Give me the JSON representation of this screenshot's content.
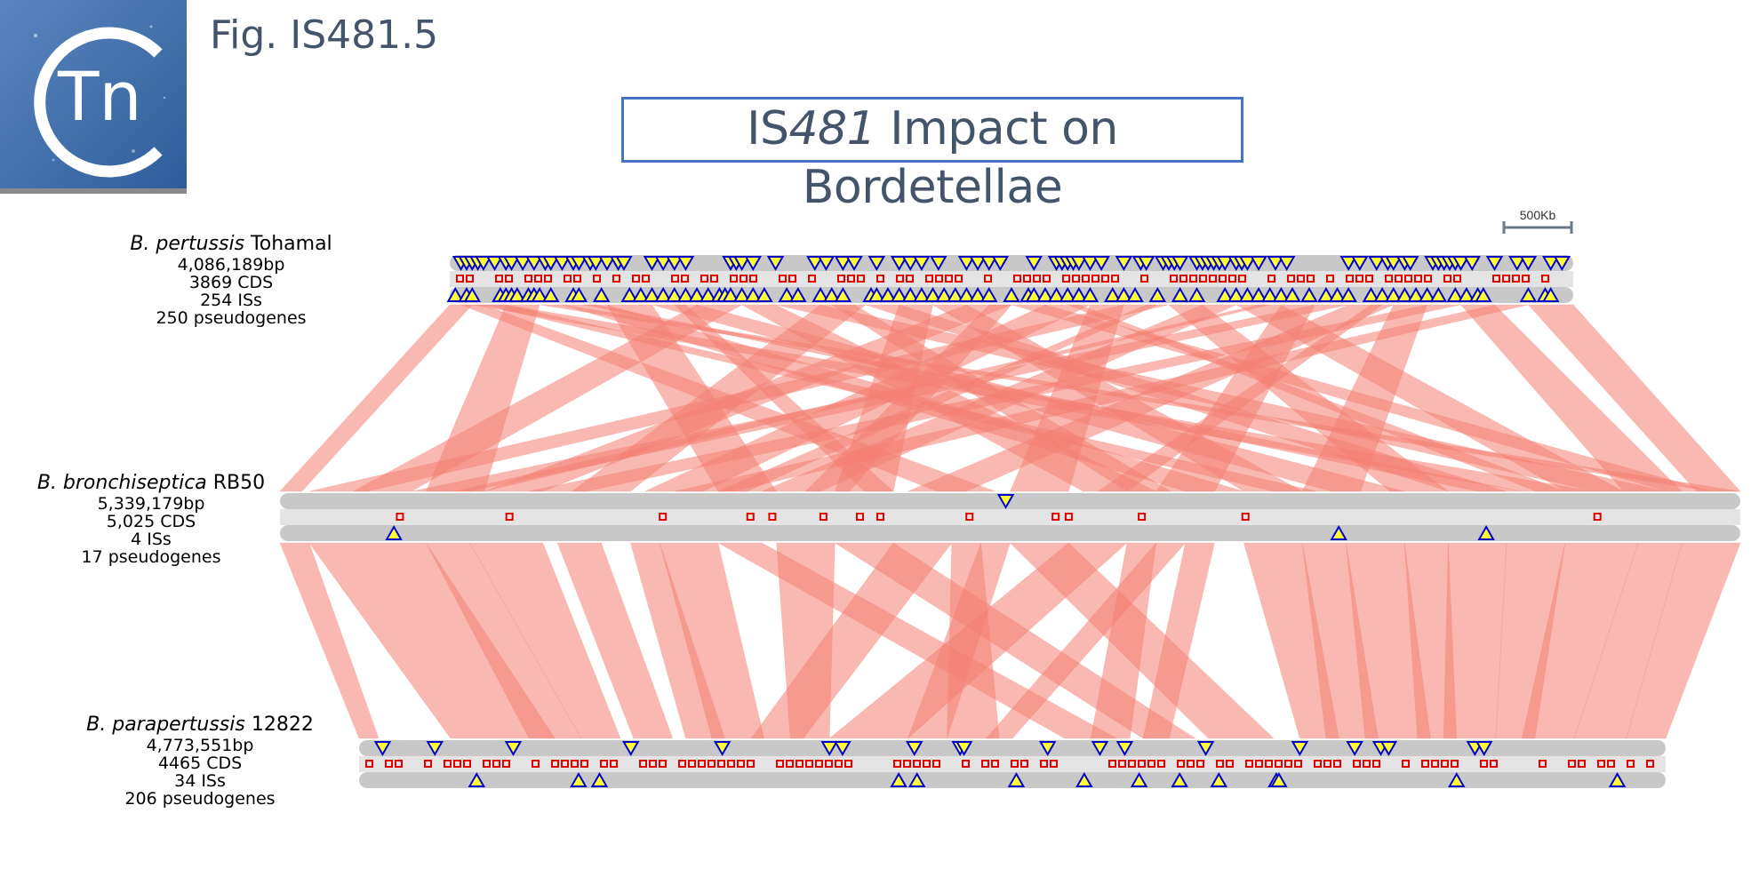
{
  "figure_label": "Fig. IS481.5",
  "title": {
    "prefix": "IS",
    "italic": "481",
    "suffix": " Impact on Bordetellae"
  },
  "logo": {
    "text": "Tn",
    "icon": "tn-logo-icon"
  },
  "scale_bar": {
    "label": "500Kb"
  },
  "genomes": [
    {
      "species": "B. pertussis",
      "strain": "Tohamal",
      "length": "4,086,189bp",
      "cds": "3869 CDS",
      "iss": "254 ISs",
      "pseudogenes": "250 pseudogenes"
    },
    {
      "species": "B. bronchiseptica",
      "strain": "RB50",
      "length": "5,339,179bp",
      "cds": "5,025 CDS",
      "iss": "4 ISs",
      "pseudogenes": "17 pseudogenes"
    },
    {
      "species": "B. parapertussis",
      "strain": "12822",
      "length": "4,773,551bp",
      "cds": "4465 CDS",
      "iss": "34 ISs",
      "pseudogenes": "206 pseudogenes"
    }
  ],
  "colors": {
    "title_text": "#44546a",
    "title_border": "#4472c4",
    "homology": "#f47f72",
    "cds": "#e00000",
    "is_fill": "#ffff33",
    "is_stroke": "#0000cc",
    "track": "#c8c8c8",
    "track_light": "#e4e4e4"
  },
  "markers": {
    "g1_fwd": [
      0.01,
      0.015,
      0.02,
      0.025,
      0.03,
      0.04,
      0.05,
      0.055,
      0.065,
      0.075,
      0.085,
      0.09,
      0.1,
      0.11,
      0.115,
      0.125,
      0.13,
      0.14,
      0.15,
      0.155,
      0.18,
      0.19,
      0.2,
      0.21,
      0.25,
      0.255,
      0.26,
      0.27,
      0.29,
      0.325,
      0.335,
      0.35,
      0.36,
      0.38,
      0.4,
      0.41,
      0.42,
      0.435,
      0.46,
      0.47,
      0.48,
      0.49,
      0.52,
      0.54,
      0.545,
      0.55,
      0.555,
      0.56,
      0.57,
      0.58,
      0.6,
      0.615,
      0.62,
      0.635,
      0.64,
      0.645,
      0.65,
      0.665,
      0.67,
      0.675,
      0.68,
      0.685,
      0.69,
      0.7,
      0.705,
      0.71,
      0.72,
      0.735,
      0.745,
      0.8,
      0.81,
      0.825,
      0.835,
      0.84,
      0.85,
      0.855,
      0.875,
      0.88,
      0.885,
      0.89,
      0.895,
      0.9,
      0.91,
      0.93,
      0.95,
      0.96,
      0.98,
      0.99
    ],
    "g1_rev": [
      0.005,
      0.015,
      0.02,
      0.045,
      0.05,
      0.055,
      0.06,
      0.07,
      0.075,
      0.08,
      0.09,
      0.11,
      0.115,
      0.135,
      0.16,
      0.17,
      0.18,
      0.19,
      0.2,
      0.21,
      0.22,
      0.23,
      0.24,
      0.245,
      0.25,
      0.26,
      0.27,
      0.28,
      0.3,
      0.31,
      0.33,
      0.34,
      0.35,
      0.375,
      0.38,
      0.39,
      0.4,
      0.41,
      0.42,
      0.43,
      0.44,
      0.45,
      0.46,
      0.47,
      0.48,
      0.5,
      0.515,
      0.52,
      0.53,
      0.54,
      0.55,
      0.56,
      0.57,
      0.59,
      0.6,
      0.61,
      0.63,
      0.65,
      0.665,
      0.69,
      0.7,
      0.71,
      0.72,
      0.73,
      0.74,
      0.75,
      0.765,
      0.78,
      0.79,
      0.8,
      0.82,
      0.83,
      0.84,
      0.85,
      0.86,
      0.87,
      0.88,
      0.895,
      0.905,
      0.915,
      0.92,
      0.96,
      0.975,
      0.98
    ],
    "g2_fwd": [
      0.497
    ],
    "g2_rev": [
      0.078,
      0.725,
      0.826
    ],
    "g3_fwd": [
      0.018,
      0.058,
      0.118,
      0.208,
      0.278,
      0.36,
      0.37,
      0.425,
      0.46,
      0.463,
      0.527,
      0.567,
      0.586,
      0.648,
      0.72,
      0.762,
      0.782,
      0.788,
      0.854,
      0.861
    ],
    "g3_rev": [
      0.09,
      0.168,
      0.184,
      0.413,
      0.427,
      0.503,
      0.555,
      0.597,
      0.628,
      0.658,
      0.702,
      0.704,
      0.84,
      0.963
    ]
  },
  "homology_links": [
    {
      "links": [
        [
          0,
          0.02,
          0,
          0.015
        ],
        [
          0.01,
          0.03,
          0.45,
          0.49
        ],
        [
          0.02,
          0.05,
          0.85,
          0.9
        ],
        [
          0.05,
          0.08,
          0.1,
          0.14
        ],
        [
          0.08,
          0.1,
          0.98,
          1.0
        ],
        [
          0.1,
          0.14,
          0.62,
          0.66
        ],
        [
          0.14,
          0.18,
          0.3,
          0.34
        ],
        [
          0.18,
          0.22,
          0.72,
          0.77
        ],
        [
          0.22,
          0.26,
          0.05,
          0.09
        ],
        [
          0.26,
          0.29,
          0.55,
          0.6
        ],
        [
          0.29,
          0.33,
          0.9,
          0.95
        ],
        [
          0.33,
          0.37,
          0.2,
          0.24
        ],
        [
          0.37,
          0.4,
          0.8,
          0.84
        ],
        [
          0.4,
          0.43,
          0.38,
          0.42
        ],
        [
          0.43,
          0.46,
          0.66,
          0.7
        ],
        [
          0.46,
          0.5,
          0.14,
          0.18
        ],
        [
          0.5,
          0.53,
          0.95,
          0.98
        ],
        [
          0.53,
          0.57,
          0.25,
          0.29
        ],
        [
          0.57,
          0.6,
          0.5,
          0.54
        ],
        [
          0.6,
          0.64,
          0.02,
          0.06
        ],
        [
          0.64,
          0.67,
          0.76,
          0.8
        ],
        [
          0.67,
          0.7,
          0.33,
          0.37
        ],
        [
          0.7,
          0.74,
          0.88,
          0.92
        ],
        [
          0.74,
          0.77,
          0.6,
          0.64
        ],
        [
          0.77,
          0.8,
          0.09,
          0.13
        ],
        [
          0.8,
          0.84,
          0.43,
          0.47
        ],
        [
          0.84,
          0.87,
          0.7,
          0.74
        ],
        [
          0.87,
          0.9,
          0.17,
          0.21
        ],
        [
          0.9,
          0.93,
          0.92,
          0.96
        ],
        [
          0.93,
          0.96,
          0.27,
          0.31
        ],
        [
          0.96,
          1.0,
          0.97,
          1.0
        ],
        [
          0.03,
          0.05,
          0.68,
          0.71
        ],
        [
          0.12,
          0.13,
          0.82,
          0.85
        ],
        [
          0.2,
          0.21,
          0.4,
          0.42
        ],
        [
          0.34,
          0.36,
          0.58,
          0.61
        ],
        [
          0.48,
          0.5,
          0.36,
          0.39
        ],
        [
          0.55,
          0.56,
          0.86,
          0.88
        ],
        [
          0.62,
          0.63,
          0.3,
          0.32
        ],
        [
          0.72,
          0.73,
          0.12,
          0.14
        ],
        [
          0.82,
          0.83,
          0.56,
          0.58
        ]
      ]
    },
    {
      "links": [
        [
          0.0,
          0.02,
          0.0,
          0.015
        ],
        [
          0.02,
          0.1,
          0.07,
          0.15
        ],
        [
          0.1,
          0.13,
          0.13,
          0.17
        ],
        [
          0.13,
          0.18,
          0.17,
          0.2
        ],
        [
          0.19,
          0.22,
          0.21,
          0.24
        ],
        [
          0.24,
          0.26,
          0.25,
          0.28
        ],
        [
          0.26,
          0.3,
          0.27,
          0.31
        ],
        [
          0.3,
          0.33,
          0.54,
          0.58
        ],
        [
          0.34,
          0.38,
          0.33,
          0.36
        ],
        [
          0.38,
          0.42,
          0.6,
          0.64
        ],
        [
          0.42,
          0.46,
          0.3,
          0.34
        ],
        [
          0.46,
          0.48,
          0.45,
          0.49
        ],
        [
          0.48,
          0.5,
          0.42,
          0.45
        ],
        [
          0.5,
          0.54,
          0.65,
          0.7
        ],
        [
          0.54,
          0.58,
          0.36,
          0.42
        ],
        [
          0.58,
          0.6,
          0.56,
          0.59
        ],
        [
          0.6,
          0.62,
          0.48,
          0.5
        ],
        [
          0.62,
          0.64,
          0.6,
          0.62
        ],
        [
          0.66,
          0.7,
          0.72,
          0.75
        ],
        [
          0.7,
          0.73,
          0.74,
          0.78
        ],
        [
          0.73,
          0.77,
          0.77,
          0.82
        ],
        [
          0.77,
          0.8,
          0.81,
          0.84
        ],
        [
          0.8,
          0.84,
          0.83,
          0.87
        ],
        [
          0.84,
          0.88,
          0.87,
          0.9
        ],
        [
          0.88,
          0.93,
          0.89,
          0.93
        ],
        [
          0.93,
          0.96,
          0.93,
          0.97
        ],
        [
          0.96,
          1.0,
          0.97,
          1.0
        ]
      ]
    }
  ]
}
